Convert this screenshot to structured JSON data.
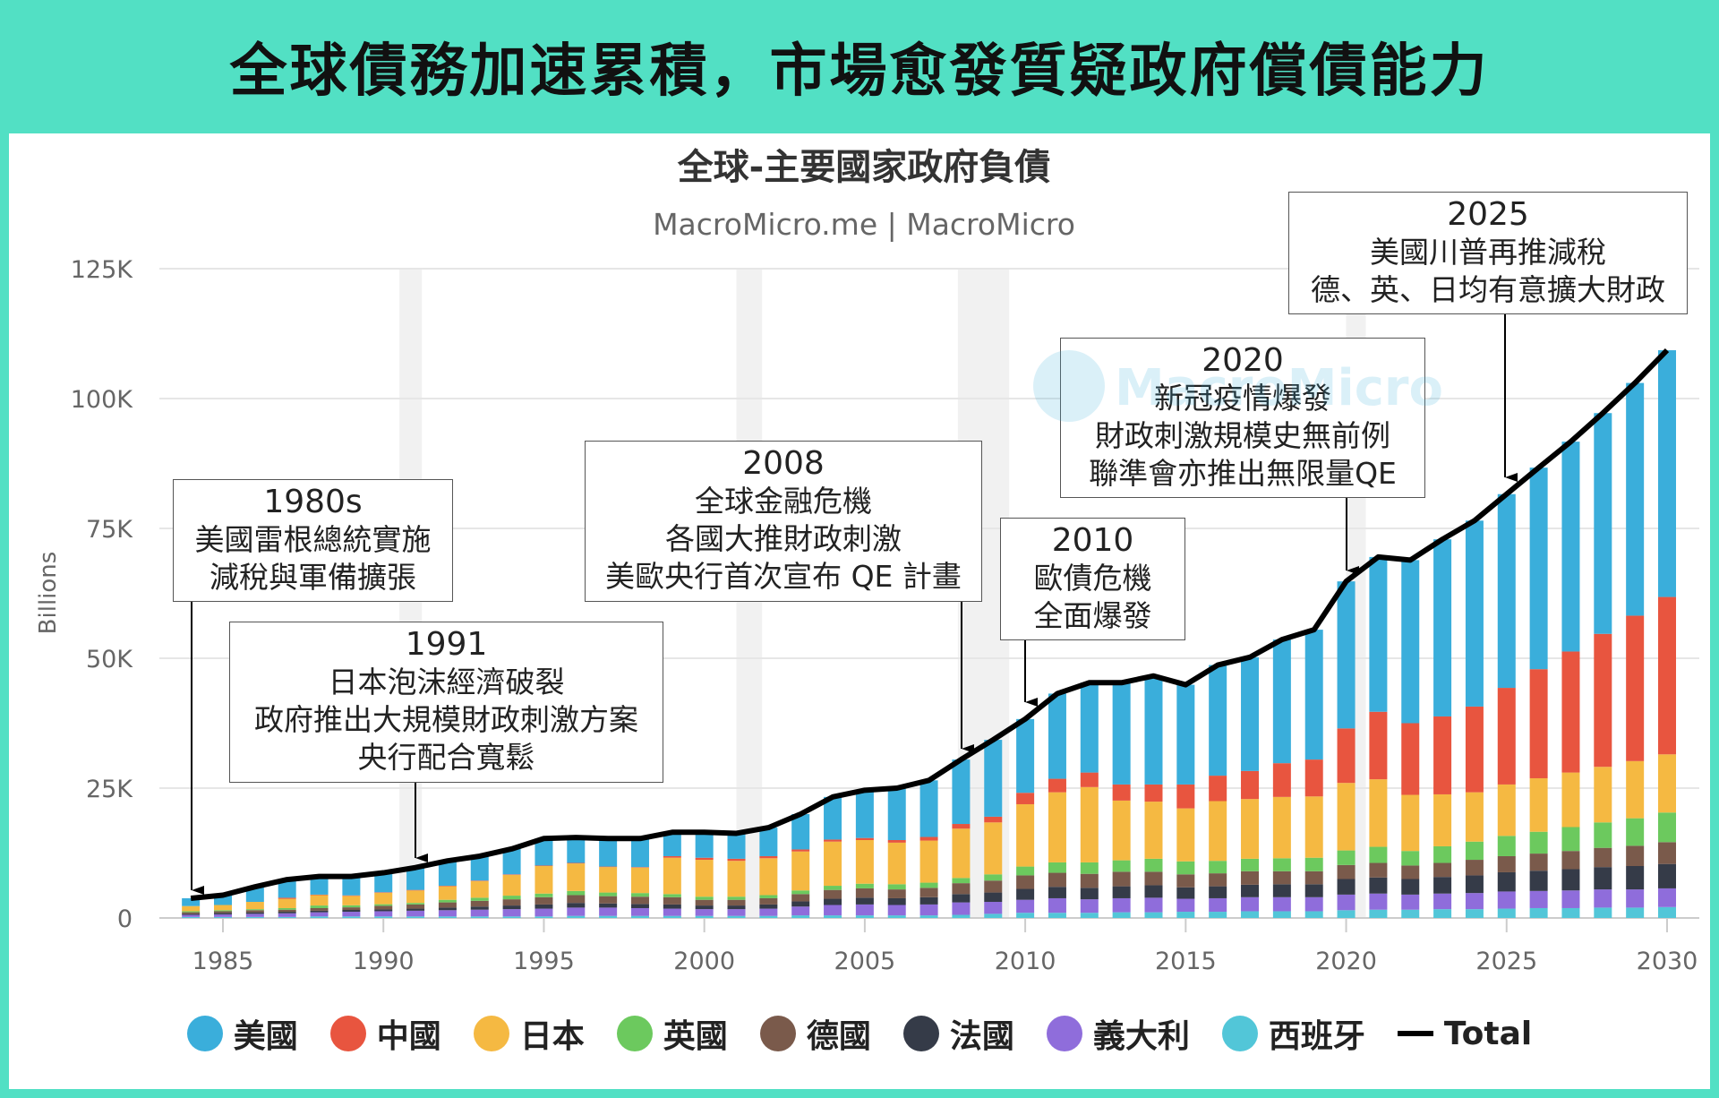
{
  "headline": "全球債務加速累積，市場愈發質疑政府償債能力",
  "watermark": "MacroMicro",
  "chart_data": {
    "type": "bar",
    "stacked": true,
    "title": "全球-主要國家政府負債",
    "subtitle": "MacroMicro.me | MacroMicro",
    "ylabel": "Billions",
    "xlabel": "",
    "ylim": [
      0,
      125000
    ],
    "yticks": [
      0,
      25000,
      50000,
      75000,
      100000,
      125000
    ],
    "ytick_labels": [
      "0",
      "25K",
      "50K",
      "75K",
      "100K",
      "125K"
    ],
    "xticks": [
      "1985",
      "1990",
      "1995",
      "2000",
      "2005",
      "2010",
      "2015",
      "2020",
      "2025",
      "2030"
    ],
    "grid": true,
    "legend_position": "bottom",
    "recession_shading": [
      [
        1990.5,
        1991.2
      ],
      [
        2001,
        2001.8
      ],
      [
        2007.9,
        2009.5
      ],
      [
        2020,
        2020.5
      ]
    ],
    "x": [
      1984,
      1985,
      1986,
      1987,
      1988,
      1989,
      1990,
      1991,
      1992,
      1993,
      1994,
      1995,
      1996,
      1997,
      1998,
      1999,
      2000,
      2001,
      2002,
      2003,
      2004,
      2005,
      2006,
      2007,
      2008,
      2009,
      2010,
      2011,
      2012,
      2013,
      2014,
      2015,
      2016,
      2017,
      2018,
      2019,
      2020,
      2021,
      2022,
      2023,
      2024,
      2025,
      2026,
      2027,
      2028,
      2029,
      2030
    ],
    "series": [
      {
        "name": "西班牙",
        "color": "#52c6d8",
        "values": [
          200,
          200,
          200,
          200,
          300,
          300,
          300,
          300,
          300,
          300,
          300,
          300,
          400,
          400,
          400,
          400,
          400,
          400,
          400,
          500,
          500,
          500,
          500,
          500,
          600,
          800,
          1000,
          1000,
          1000,
          1100,
          1100,
          1200,
          1200,
          1300,
          1300,
          1300,
          1500,
          1600,
          1600,
          1700,
          1700,
          1800,
          1900,
          1900,
          2000,
          2000,
          2100
        ]
      },
      {
        "name": "義大利",
        "color": "#8f6ddb",
        "values": [
          400,
          500,
          600,
          700,
          800,
          900,
          1000,
          1100,
          1200,
          1300,
          1400,
          1500,
          1600,
          1600,
          1500,
          1400,
          1300,
          1300,
          1400,
          1700,
          2000,
          2100,
          2000,
          2100,
          2400,
          2300,
          2500,
          2800,
          2600,
          2700,
          2800,
          2500,
          2600,
          2700,
          2700,
          2700,
          3000,
          3100,
          2900,
          3000,
          3100,
          3300,
          3300,
          3400,
          3500,
          3500,
          3600
        ]
      },
      {
        "name": "法國",
        "color": "#353b48",
        "values": [
          200,
          300,
          300,
          300,
          300,
          350,
          350,
          400,
          500,
          600,
          700,
          800,
          900,
          800,
          800,
          800,
          700,
          700,
          800,
          1000,
          1200,
          1300,
          1300,
          1400,
          1600,
          1800,
          2100,
          2200,
          2200,
          2300,
          2400,
          2200,
          2300,
          2400,
          2500,
          2500,
          3000,
          3100,
          3000,
          3200,
          3400,
          3700,
          3900,
          4100,
          4300,
          4500,
          4700
        ]
      },
      {
        "name": "德國",
        "color": "#7a5a4b",
        "values": [
          300,
          300,
          400,
          400,
          500,
          500,
          700,
          800,
          1000,
          1100,
          1200,
          1400,
          1500,
          1400,
          1400,
          1400,
          1100,
          1100,
          1200,
          1400,
          1700,
          1800,
          1700,
          1800,
          2100,
          2300,
          2600,
          2700,
          2700,
          2800,
          2600,
          2500,
          2500,
          2600,
          2500,
          2500,
          2700,
          2800,
          2600,
          2700,
          3000,
          3100,
          3300,
          3500,
          3700,
          3900,
          4200
        ]
      },
      {
        "name": "英國",
        "color": "#6cc95e",
        "values": [
          200,
          200,
          200,
          300,
          500,
          400,
          300,
          300,
          500,
          600,
          700,
          700,
          800,
          700,
          700,
          600,
          600,
          600,
          600,
          700,
          800,
          900,
          1000,
          1000,
          1000,
          1200,
          1700,
          2000,
          2200,
          2200,
          2500,
          2500,
          2400,
          2400,
          2500,
          2600,
          2800,
          3100,
          2800,
          3200,
          3500,
          3900,
          4200,
          4600,
          4900,
          5300,
          5700
        ]
      },
      {
        "name": "日本",
        "color": "#f5b942",
        "values": [
          1000,
          1000,
          1400,
          1800,
          2000,
          1800,
          2200,
          2400,
          2600,
          3200,
          4000,
          5300,
          5300,
          4900,
          4900,
          7000,
          7100,
          6900,
          7100,
          7500,
          8500,
          8400,
          8000,
          8100,
          9500,
          10000,
          12000,
          13500,
          14500,
          11500,
          11000,
          10200,
          11500,
          11500,
          11800,
          11800,
          13000,
          13000,
          10800,
          10000,
          9500,
          9900,
          10300,
          10500,
          10700,
          11000,
          11200
        ]
      },
      {
        "name": "中國",
        "color": "#e8553f",
        "values": [
          0,
          0,
          0,
          200,
          100,
          100,
          100,
          100,
          100,
          100,
          100,
          100,
          100,
          100,
          100,
          300,
          400,
          400,
          400,
          400,
          400,
          400,
          500,
          700,
          900,
          1100,
          2200,
          2600,
          2800,
          3100,
          3300,
          4600,
          4900,
          5400,
          6500,
          7100,
          10500,
          13000,
          13800,
          15000,
          16500,
          18600,
          21000,
          23300,
          25600,
          28000,
          30300
        ]
      },
      {
        "name": "美國",
        "color": "#3aaedb",
        "values": [
          1500,
          1900,
          2900,
          3500,
          3500,
          3650,
          3750,
          4300,
          4800,
          4700,
          4900,
          5200,
          4900,
          5400,
          5500,
          4600,
          4900,
          4900,
          5500,
          6800,
          8200,
          9200,
          10000,
          10900,
          12400,
          14800,
          14200,
          16400,
          17300,
          19600,
          20900,
          19200,
          21300,
          21900,
          23800,
          25000,
          28300,
          29800,
          31400,
          34100,
          35800,
          37300,
          38800,
          40400,
          42500,
          44800,
          47500
        ]
      }
    ],
    "total": {
      "name": "Total",
      "color": "#000000",
      "values": [
        3800,
        4400,
        6000,
        7400,
        8000,
        8000,
        8700,
        9700,
        11000,
        11900,
        13300,
        15300,
        15500,
        15300,
        15300,
        16500,
        16500,
        16300,
        17400,
        20000,
        23300,
        24600,
        25000,
        26500,
        30500,
        34300,
        38300,
        43200,
        45300,
        45300,
        46600,
        44900,
        48700,
        50200,
        53600,
        55500,
        64800,
        69500,
        68900,
        72900,
        76500,
        81600,
        86700,
        91700,
        97200,
        103000,
        109300
      ]
    },
    "legend": [
      "美國",
      "中國",
      "日本",
      "英國",
      "德國",
      "法國",
      "義大利",
      "西班牙",
      "Total"
    ],
    "legend_colors": [
      "#3aaedb",
      "#e8553f",
      "#f5b942",
      "#6cc95e",
      "#7a5a4b",
      "#353b48",
      "#8f6ddb",
      "#52c6d8",
      "#000000"
    ],
    "annotations": [
      {
        "year": 1984,
        "lines": [
          "1980s",
          "美國雷根總統實施",
          "減稅與軍備擴張"
        ]
      },
      {
        "year": 1991,
        "lines": [
          "1991",
          "日本泡沫經濟破裂",
          "政府推出大規模財政刺激方案",
          "央行配合寬鬆"
        ]
      },
      {
        "year": 2008,
        "lines": [
          "2008",
          "全球金融危機",
          "各國大推財政刺激",
          "美歐央行首次宣布 QE 計畫"
        ]
      },
      {
        "year": 2010,
        "lines": [
          "2010",
          "歐債危機",
          "全面爆發"
        ]
      },
      {
        "year": 2020,
        "lines": [
          "2020",
          "新冠疫情爆發",
          "財政刺激規模史無前例",
          "聯準會亦推出無限量QE"
        ]
      },
      {
        "year": 2025,
        "lines": [
          "2025",
          "美國川普再推減稅",
          "德、英、日均有意擴大財政"
        ]
      }
    ]
  }
}
